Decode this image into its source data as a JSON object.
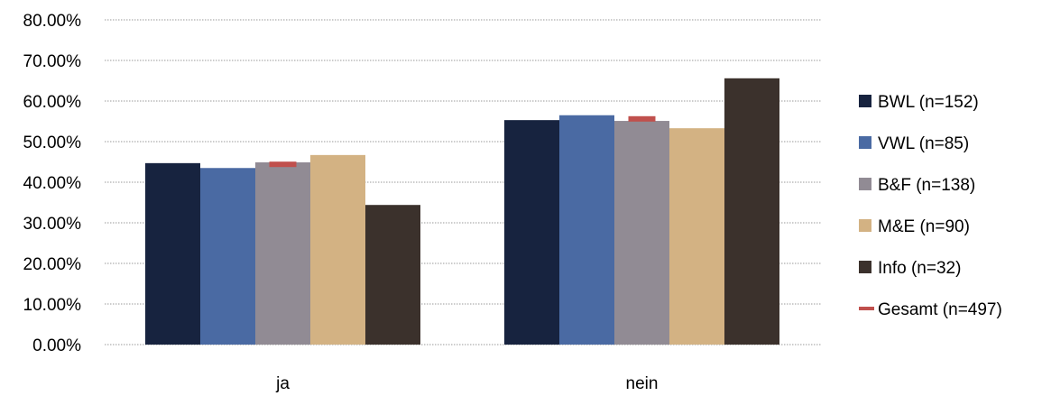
{
  "chart_data": {
    "type": "bar",
    "categories": [
      "ja",
      "nein"
    ],
    "series": [
      {
        "name": "BWL (n=152)",
        "color": "#17233F",
        "values": [
          44.7,
          55.3
        ]
      },
      {
        "name": "VWL (n=85)",
        "color": "#4A6AA3",
        "values": [
          43.5,
          56.5
        ]
      },
      {
        "name": "B&F (n=138)",
        "color": "#918B94",
        "values": [
          44.9,
          55.1
        ]
      },
      {
        "name": "M&E (n=90)",
        "color": "#D3B283",
        "values": [
          46.7,
          53.3
        ]
      },
      {
        "name": "Info (n=32)",
        "color": "#3B312C",
        "values": [
          34.4,
          65.6
        ]
      }
    ],
    "gesamt": {
      "name": "Gesamt (n=497)",
      "color": "#C0504D",
      "values": [
        44.4,
        55.6
      ]
    },
    "ylim": [
      0,
      80
    ],
    "yticks": [
      0,
      10,
      20,
      30,
      40,
      50,
      60,
      70,
      80
    ],
    "ytick_labels": [
      "0.00%",
      "10.00%",
      "20.00%",
      "30.00%",
      "40.00%",
      "50.00%",
      "60.00%",
      "70.00%",
      "80.00%"
    ],
    "grid": true,
    "legend_position": "right",
    "title": "",
    "xlabel": "",
    "ylabel": ""
  }
}
